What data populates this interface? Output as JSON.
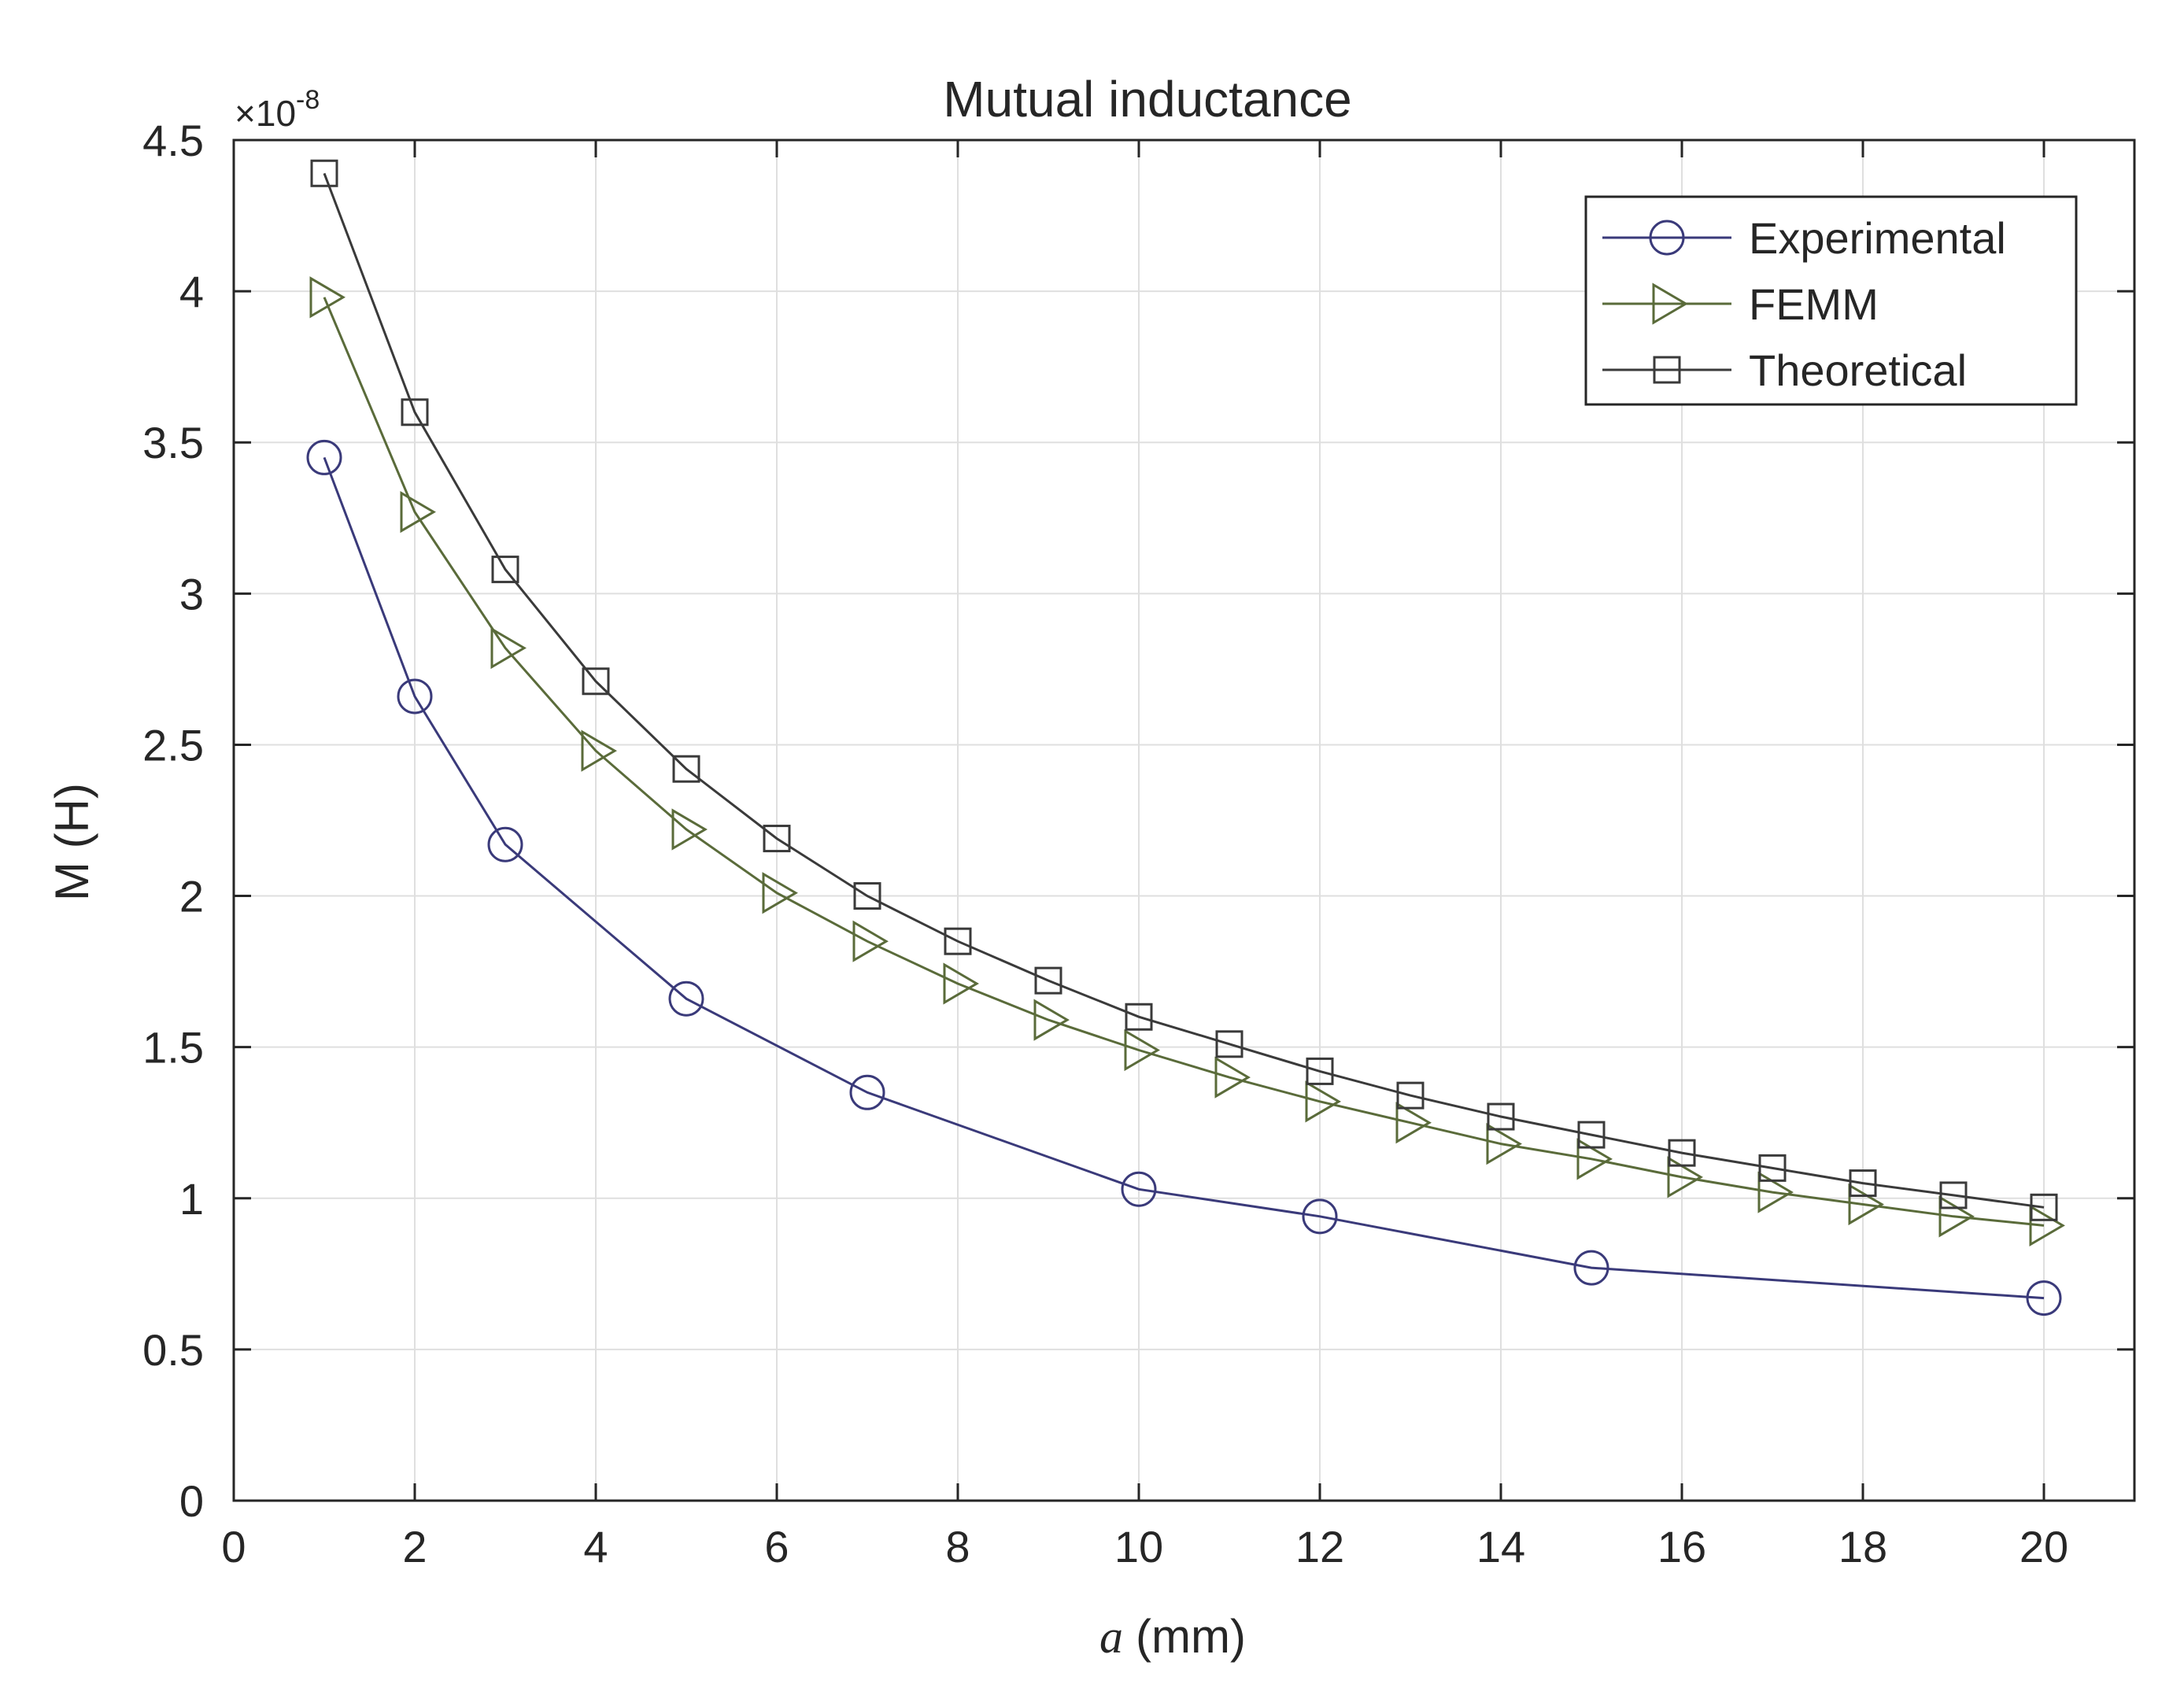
{
  "chart_data": {
    "type": "line",
    "title": "Mutual inductance",
    "xlabel_var": "a",
    "xlabel_unit": "(mm)",
    "ylabel": "M (H)",
    "y_exponent": "×10",
    "y_exponent_power": "-8",
    "xlim": [
      0,
      21
    ],
    "ylim": [
      0,
      4.5
    ],
    "grid": true,
    "legend_position": "top-right",
    "x_ticks": [
      0,
      2,
      4,
      6,
      8,
      10,
      12,
      14,
      16,
      18,
      20
    ],
    "x_tick_labels": [
      "0",
      "2",
      "4",
      "6",
      "8",
      "10",
      "12",
      "14",
      "16",
      "18",
      "20"
    ],
    "y_ticks": [
      0,
      0.5,
      1,
      1.5,
      2,
      2.5,
      3,
      3.5,
      4,
      4.5
    ],
    "y_tick_labels": [
      "0",
      "0.5",
      "1",
      "1.5",
      "2",
      "2.5",
      "3",
      "3.5",
      "4",
      "4.5"
    ],
    "series": [
      {
        "name": "Experimental",
        "marker": "circle",
        "color": "#3a3a7a",
        "x": [
          1,
          2,
          3,
          5,
          7,
          10,
          12,
          15,
          20
        ],
        "values": [
          3.45,
          2.66,
          2.17,
          1.66,
          1.35,
          1.03,
          0.94,
          0.77,
          0.67
        ]
      },
      {
        "name": "FEMM",
        "marker": "triangle-right",
        "color": "#5a6b3a",
        "x": [
          1,
          2,
          3,
          4,
          5,
          6,
          7,
          8,
          9,
          10,
          11,
          12,
          13,
          14,
          15,
          16,
          17,
          18,
          19,
          20
        ],
        "values": [
          3.98,
          3.27,
          2.82,
          2.48,
          2.22,
          2.01,
          1.85,
          1.71,
          1.59,
          1.49,
          1.4,
          1.32,
          1.25,
          1.18,
          1.13,
          1.07,
          1.02,
          0.98,
          0.94,
          0.91
        ]
      },
      {
        "name": "Theoretical",
        "marker": "square",
        "color": "#3a3a3a",
        "x": [
          1,
          2,
          3,
          4,
          5,
          6,
          7,
          8,
          9,
          10,
          11,
          12,
          13,
          14,
          15,
          16,
          17,
          18,
          19,
          20
        ],
        "values": [
          4.39,
          3.6,
          3.08,
          2.71,
          2.42,
          2.19,
          2.0,
          1.85,
          1.72,
          1.6,
          1.51,
          1.42,
          1.34,
          1.27,
          1.21,
          1.15,
          1.1,
          1.05,
          1.01,
          0.97
        ]
      }
    ]
  }
}
